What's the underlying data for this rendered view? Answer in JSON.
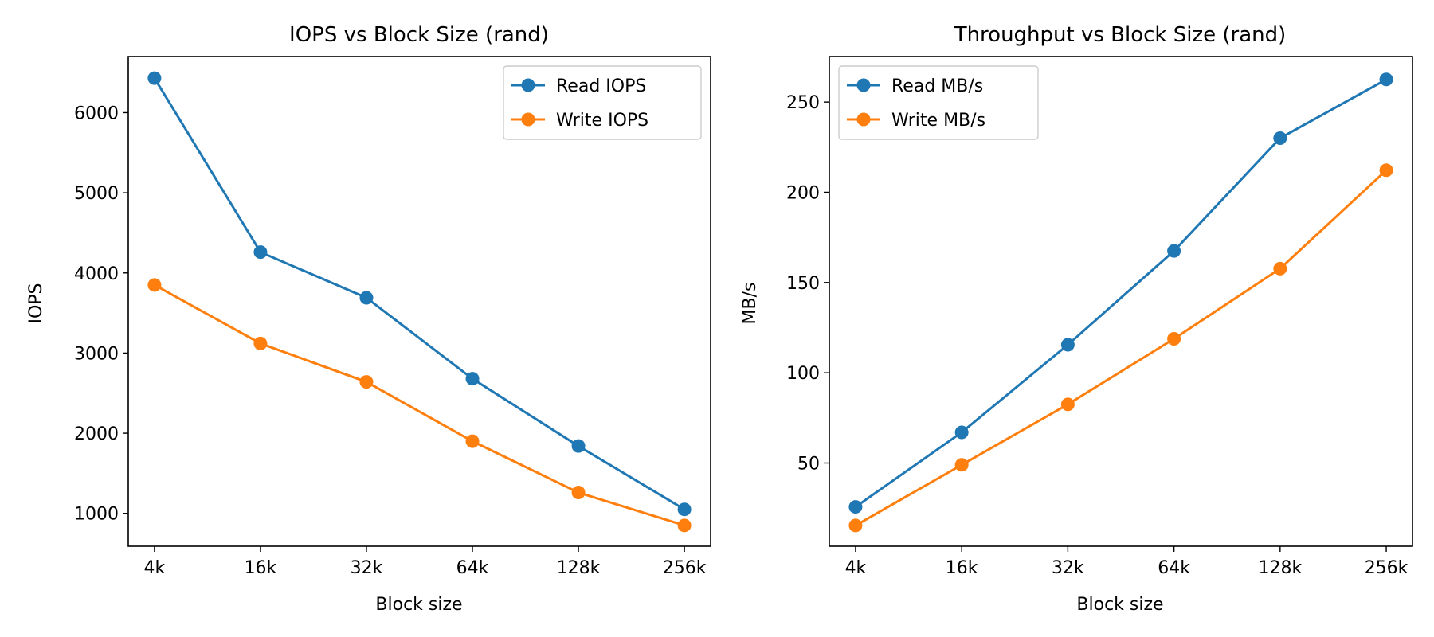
{
  "chart_data": [
    {
      "type": "line",
      "title": "IOPS vs Block Size (rand)",
      "xlabel": "Block size",
      "ylabel": "IOPS",
      "categories": [
        "4k",
        "16k",
        "32k",
        "64k",
        "128k",
        "256k"
      ],
      "yticks": [
        1000,
        2000,
        3000,
        4000,
        5000,
        6000
      ],
      "ylim": [
        590,
        6700
      ],
      "grid": false,
      "legend_position": "upper right",
      "series": [
        {
          "name": "Read IOPS",
          "color": "#1f77b4",
          "marker": "circle",
          "values": [
            6430,
            4260,
            3690,
            2680,
            1840,
            1050
          ]
        },
        {
          "name": "Write IOPS",
          "color": "#ff7f0e",
          "marker": "circle",
          "values": [
            3850,
            3120,
            2640,
            1900,
            1260,
            850
          ]
        }
      ]
    },
    {
      "type": "line",
      "title": "Throughput vs Block Size (rand)",
      "xlabel": "Block size",
      "ylabel": "MB/s",
      "categories": [
        "4k",
        "16k",
        "32k",
        "64k",
        "128k",
        "256k"
      ],
      "yticks": [
        50,
        100,
        150,
        200,
        250
      ],
      "ylim": [
        3.9,
        275.2
      ],
      "grid": false,
      "legend_position": "upper left",
      "series": [
        {
          "name": "Read MB/s",
          "color": "#1f77b4",
          "marker": "circle",
          "values": [
            25.7,
            67.0,
            115.5,
            167.5,
            230.0,
            262.5
          ]
        },
        {
          "name": "Write MB/s",
          "color": "#ff7f0e",
          "marker": "circle",
          "values": [
            15.4,
            49.0,
            82.5,
            118.8,
            157.7,
            212.2
          ]
        }
      ]
    }
  ]
}
